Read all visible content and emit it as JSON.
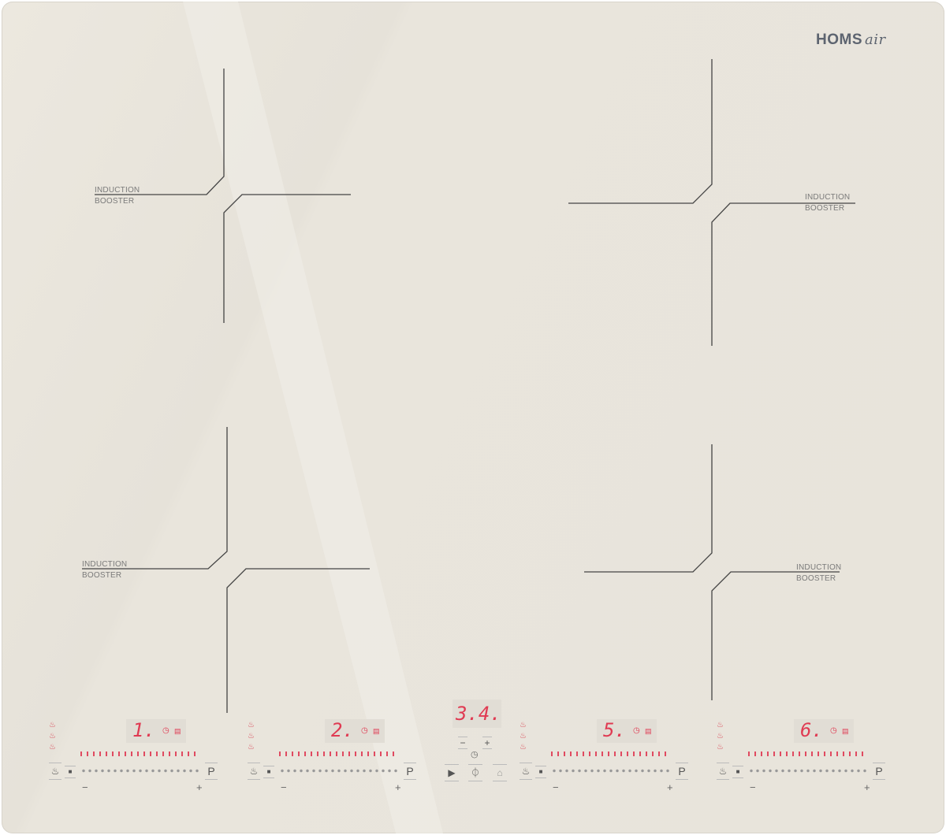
{
  "brand": {
    "name": "HOMS",
    "suffix": "air",
    "color": "#5d6470"
  },
  "zones": [
    {
      "label_top": "INDUCTION",
      "label_bottom": "BOOSTER"
    },
    {
      "label_top": "INDUCTION",
      "label_bottom": "BOOSTER"
    },
    {
      "label_top": "INDUCTION",
      "label_bottom": "BOOSTER"
    },
    {
      "label_top": "INDUCTION",
      "label_bottom": "BOOSTER"
    }
  ],
  "controls": [
    {
      "digit": "1.",
      "minus": "−",
      "plus": "+",
      "p": "P"
    },
    {
      "digit": "2.",
      "minus": "−",
      "plus": "+",
      "p": "P"
    },
    {
      "digit": "5.",
      "minus": "−",
      "plus": "+",
      "p": "P"
    },
    {
      "digit": "6.",
      "minus": "−",
      "plus": "+",
      "p": "P"
    }
  ],
  "center": {
    "display": "3.4.",
    "minus": "−",
    "plus": "+"
  },
  "icons": {
    "bowl": "pot-icon",
    "clock": "clock-icon",
    "play": "play-icon",
    "power": "power-icon",
    "lock": "lock-icon"
  },
  "colors": {
    "display": "#e03a52",
    "glass": "#e8e4db",
    "lines": "#444"
  }
}
